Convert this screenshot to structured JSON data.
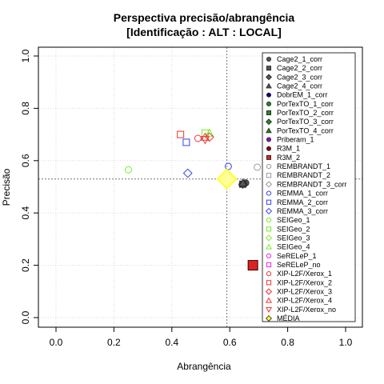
{
  "chart_data": {
    "type": "scatter",
    "title": "Perspectiva precisão/abrangência",
    "subtitle": "[Identificação : ALT : LOCAL]",
    "xlabel": "Abrangência",
    "ylabel": "Precisão",
    "xlim": [
      0,
      1
    ],
    "ylim": [
      0,
      1
    ],
    "x_ticks": [
      "0.0",
      "0.2",
      "0.4",
      "0.6",
      "0.8",
      "1.0"
    ],
    "y_ticks": [
      "0.0",
      "0.2",
      "0.4",
      "0.6",
      "0.8",
      "1.0"
    ],
    "grid": true,
    "reference_lines": {
      "x": 0.59,
      "y": 0.53
    },
    "legend_position": "top-right",
    "series": [
      {
        "name": "Cage2_1_corr",
        "color": "#555555",
        "marker": "circle-filled",
        "x": 0.655,
        "y": 0.515
      },
      {
        "name": "Cage2_2_corr",
        "color": "#555555",
        "marker": "square-filled",
        "x": 0.645,
        "y": 0.51
      },
      {
        "name": "Cage2_3_corr",
        "color": "#555555",
        "marker": "diamond-filled",
        "x": 0.645,
        "y": 0.51
      },
      {
        "name": "Cage2_4_corr",
        "color": "#555555",
        "marker": "triangle-filled",
        "x": 0.645,
        "y": 0.515
      },
      {
        "name": "DobrEM_1_corr",
        "color": "#00008b",
        "marker": "circle-filled",
        "x": null,
        "y": null
      },
      {
        "name": "PorTexTO_1_corr",
        "color": "#228b22",
        "marker": "circle-filled",
        "x": null,
        "y": null
      },
      {
        "name": "PorTexTO_2_corr",
        "color": "#228b22",
        "marker": "square-filled",
        "x": null,
        "y": null
      },
      {
        "name": "PorTexTO_3_corr",
        "color": "#228b22",
        "marker": "diamond-filled",
        "x": null,
        "y": null
      },
      {
        "name": "PorTexTO_4_corr",
        "color": "#228b22",
        "marker": "triangle-filled",
        "x": null,
        "y": null
      },
      {
        "name": "Priberam_1",
        "color": "#9400d3",
        "marker": "circle-filled",
        "x": null,
        "y": null
      },
      {
        "name": "R3M_1",
        "color": "#8b0000",
        "marker": "circle-filled",
        "x": null,
        "y": null
      },
      {
        "name": "R3M_2",
        "color": "#dd2222",
        "marker": "square-filled",
        "x": 0.68,
        "y": 0.2
      },
      {
        "name": "REMBRANDT_1",
        "color": "#999999",
        "marker": "circle",
        "x": 0.695,
        "y": 0.575
      },
      {
        "name": "REMBRANDT_2",
        "color": "#999999",
        "marker": "square",
        "x": null,
        "y": null
      },
      {
        "name": "REMBRANDT_3_corr",
        "color": "#999999",
        "marker": "diamond",
        "x": null,
        "y": null
      },
      {
        "name": "REMMA_1_corr",
        "color": "#3344ee",
        "marker": "circle",
        "x": 0.595,
        "y": 0.578
      },
      {
        "name": "REMMA_2_corr",
        "color": "#3344ee",
        "marker": "square",
        "x": 0.45,
        "y": 0.67
      },
      {
        "name": "REMMA_3_corr",
        "color": "#3344ee",
        "marker": "diamond",
        "x": 0.455,
        "y": 0.552
      },
      {
        "name": "SEIGeo_1",
        "color": "#77ee22",
        "marker": "circle",
        "x": 0.25,
        "y": 0.565
      },
      {
        "name": "SEIGeo_2",
        "color": "#77ee22",
        "marker": "square",
        "x": 0.515,
        "y": 0.705
      },
      {
        "name": "SEIGeo_3",
        "color": "#77ee22",
        "marker": "diamond",
        "x": null,
        "y": null
      },
      {
        "name": "SEIGeo_4",
        "color": "#77ee22",
        "marker": "triangle",
        "x": 0.53,
        "y": 0.705
      },
      {
        "name": "SeRELeP_1",
        "color": "#ee22ee",
        "marker": "circle",
        "x": null,
        "y": null
      },
      {
        "name": "SeRELeP_no",
        "color": "#ee22ee",
        "marker": "square",
        "x": null,
        "y": null
      },
      {
        "name": "XIP-L2F/Xerox_1",
        "color": "#ee3333",
        "marker": "circle",
        "x": 0.49,
        "y": 0.685
      },
      {
        "name": "XIP-L2F/Xerox_2",
        "color": "#ee3333",
        "marker": "square",
        "x": 0.43,
        "y": 0.7
      },
      {
        "name": "XIP-L2F/Xerox_3",
        "color": "#ee3333",
        "marker": "diamond",
        "x": 0.53,
        "y": 0.69
      },
      {
        "name": "XIP-L2F/Xerox_4",
        "color": "#ee3333",
        "marker": "triangle",
        "x": 0.515,
        "y": 0.69
      },
      {
        "name": "XIP-L2F/Xerox_no",
        "color": "#ee3333",
        "marker": "triangle-down",
        "x": 0.515,
        "y": 0.68
      },
      {
        "name": "MÉDIA",
        "color": "#ffff33",
        "marker": "diamond",
        "x": 0.59,
        "y": 0.53
      }
    ]
  }
}
